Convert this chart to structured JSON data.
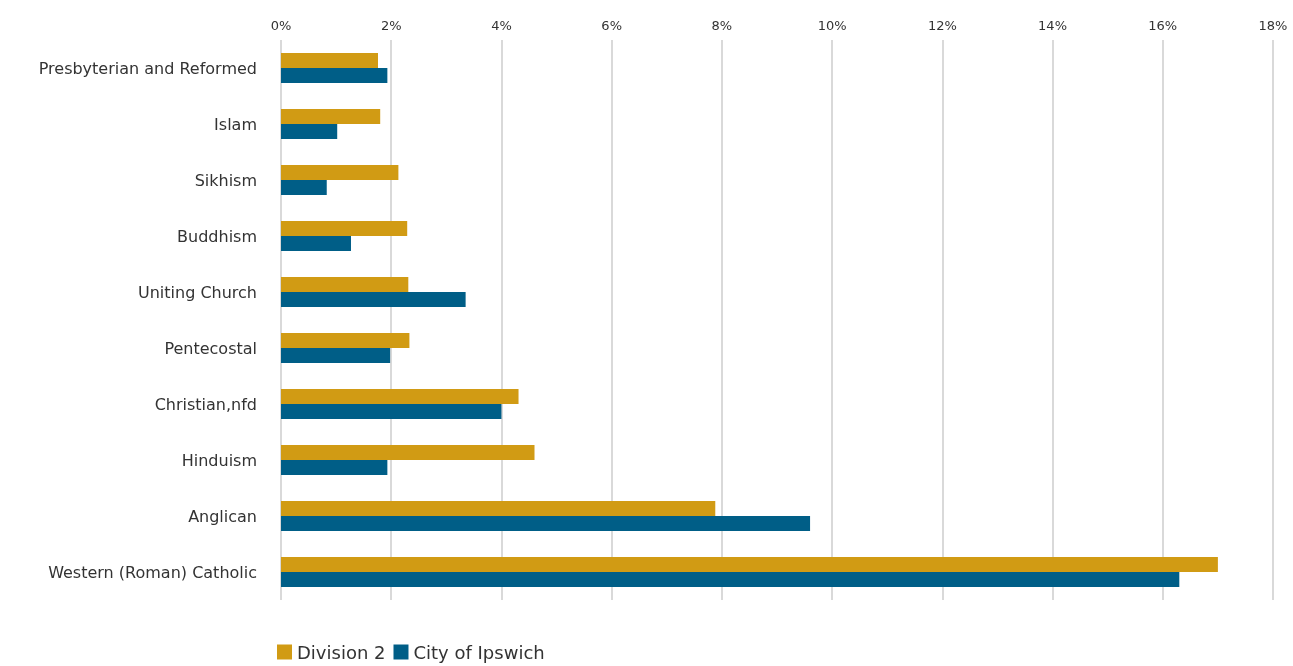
{
  "chart_data": {
    "type": "bar",
    "orientation": "horizontal",
    "categories": [
      "Presbyterian and Reformed",
      "Islam",
      "Sikhism",
      "Buddhism",
      "Uniting Church",
      "Pentecostal",
      "Christian,nfd",
      "Hinduism",
      "Anglican",
      "Western (Roman) Catholic"
    ],
    "series": [
      {
        "name": "Division 2",
        "color": "#d19b14",
        "values": [
          1.76,
          1.8,
          2.13,
          2.29,
          2.31,
          2.33,
          4.31,
          4.6,
          7.88,
          17.0
        ]
      },
      {
        "name": "City of Ipswich",
        "color": "#005e87",
        "values": [
          1.93,
          1.02,
          0.83,
          1.27,
          3.35,
          1.98,
          4.0,
          1.93,
          9.6,
          16.3
        ]
      }
    ],
    "xlim": [
      0,
      18
    ],
    "xticks": [
      {
        "value": 0,
        "label": "0%"
      },
      {
        "value": 2,
        "label": "2%"
      },
      {
        "value": 4,
        "label": "4%"
      },
      {
        "value": 6,
        "label": "6%"
      },
      {
        "value": 8,
        "label": "8%"
      },
      {
        "value": 10,
        "label": "10%"
      },
      {
        "value": 12,
        "label": "12%"
      },
      {
        "value": 14,
        "label": "14%"
      },
      {
        "value": 16,
        "label": "16%"
      },
      {
        "value": 18,
        "label": "18%"
      }
    ],
    "grid": "x",
    "legend": "bottom left"
  }
}
